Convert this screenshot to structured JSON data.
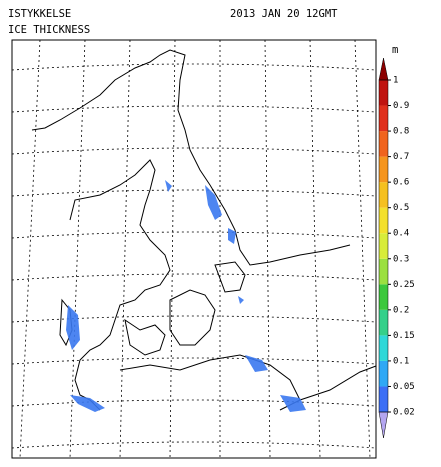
{
  "header": {
    "title_no": "ISTYKKELSE",
    "title_en": "ICE THICKNESS",
    "date": "2013 JAN 20 12GMT"
  },
  "colorbar": {
    "unit": "m",
    "levels": [
      0.02,
      0.05,
      0.1,
      0.15,
      0.2,
      0.25,
      0.3,
      0.4,
      0.5,
      0.6,
      0.7,
      0.8,
      0.9,
      1
    ],
    "colors": [
      "#3c6ff5",
      "#2fa8f5",
      "#2fd8d8",
      "#35d08a",
      "#3cc83c",
      "#9be040",
      "#d8ec3a",
      "#f3e02c",
      "#f5c020",
      "#f5951e",
      "#f0641e",
      "#e0301c",
      "#c01410"
    ],
    "over_color": "#8c0000",
    "under_color": "#b4a6f0"
  }
}
